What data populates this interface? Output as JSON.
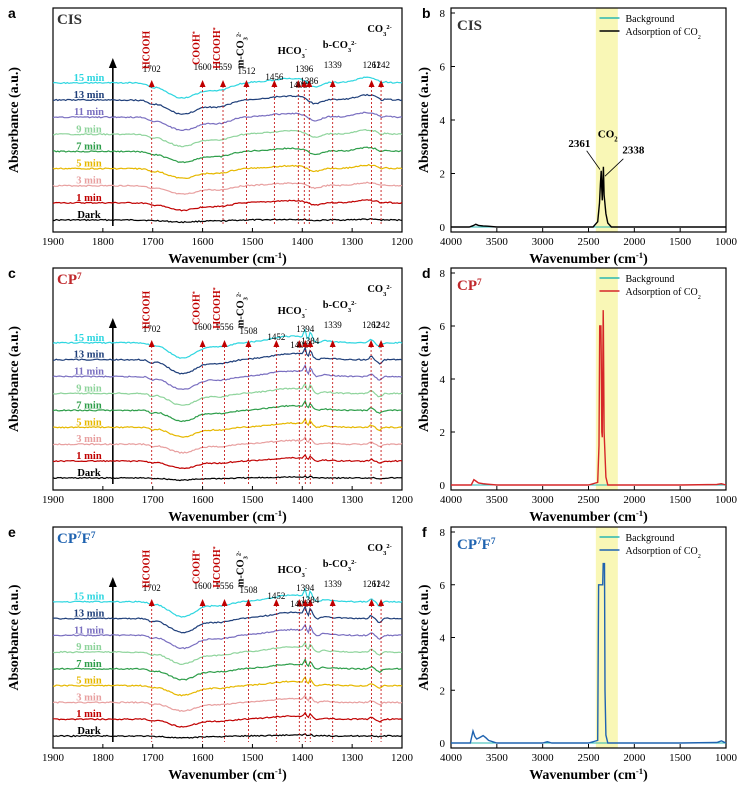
{
  "panels": {
    "a": {
      "letter": "a",
      "title": "CIS",
      "title_color": "#333333"
    },
    "b": {
      "letter": "b",
      "title": "CIS",
      "title_color": "#333333"
    },
    "c": {
      "letter": "c",
      "title": "CP",
      "title_sup": "7",
      "title_color": "#c0282c"
    },
    "d": {
      "letter": "d",
      "title": "CP",
      "title_sup": "7",
      "title_color": "#c0282c"
    },
    "e": {
      "letter": "e",
      "title": "CP",
      "title_sup": "7",
      "title_mid": "F",
      "title_sup2": "7",
      "title_color": "#1f63b0"
    },
    "f": {
      "letter": "f",
      "title": "CP",
      "title_sup": "7",
      "title_mid": "F",
      "title_sup2": "7",
      "title_color": "#1f63b0"
    }
  },
  "chart_data": [
    {
      "id": "a",
      "type": "line",
      "xlabel": "Wavenumber (cm-1)",
      "ylabel": "Absorbance (a.u.)",
      "xlim": [
        1900,
        1200
      ],
      "xticks": [
        1900,
        1800,
        1700,
        1600,
        1500,
        1400,
        1300,
        1200
      ],
      "series": [
        {
          "name": "Dark",
          "color": "#000000"
        },
        {
          "name": "1 min",
          "color": "#c00000"
        },
        {
          "name": "3 min",
          "color": "#e8a0a0"
        },
        {
          "name": "5 min",
          "color": "#e6b800"
        },
        {
          "name": "7 min",
          "color": "#2e9e4a"
        },
        {
          "name": "9 min",
          "color": "#8fd49c"
        },
        {
          "name": "11 min",
          "color": "#7a6fc0"
        },
        {
          "name": "13 min",
          "color": "#1f3f7a"
        },
        {
          "name": "15 min",
          "color": "#2ed6e0"
        }
      ],
      "peaks": [
        "1702",
        "1600",
        "1559",
        "1512",
        "1456",
        "1408",
        "1396",
        "1386",
        "1339",
        "1261",
        "1242"
      ],
      "peak_positions": [
        1702,
        1600,
        1559,
        1512,
        1456,
        1408,
        1396,
        1386,
        1339,
        1261,
        1242
      ],
      "species": [
        "HCOOH",
        "COOH*",
        "HCOOH*",
        "m-CO32-",
        "HCO3-",
        "b-CO32-",
        "CO32-"
      ]
    },
    {
      "id": "b",
      "type": "line",
      "xlabel": "Wavenumber (cm-1)",
      "ylabel": "Absorbance (a.u.)",
      "xlim": [
        4000,
        1000
      ],
      "ylim": [
        0,
        8
      ],
      "xticks": [
        4000,
        3500,
        3000,
        2500,
        2000,
        1500,
        1000
      ],
      "yticks": [
        0,
        2,
        4,
        6,
        8
      ],
      "legend": [
        "Background",
        "Adsorption of CO2"
      ],
      "legend_position": "top-right",
      "highlight_band": [
        2420,
        2180
      ],
      "annotations": [
        "2361",
        "CO2",
        "2338"
      ],
      "series": [
        {
          "name": "Background",
          "color": "#2ab7b0",
          "x": [
            4000,
            3000,
            2500,
            2000,
            1000
          ],
          "y": [
            0.0,
            0.0,
            0.0,
            0.0,
            0.0
          ]
        },
        {
          "name": "Adsorption of CO2",
          "color": "#000000",
          "x": [
            4000,
            3800,
            3760,
            3730,
            3700,
            3650,
            3600,
            3500,
            3000,
            2450,
            2400,
            2380,
            2370,
            2361,
            2355,
            2349,
            2345,
            2338,
            2330,
            2310,
            2290,
            2250,
            2000,
            1500,
            1000
          ],
          "y": [
            0,
            0,
            0.05,
            0.1,
            0.06,
            0.04,
            0.03,
            0,
            0,
            0,
            0.2,
            0.9,
            1.6,
            2.1,
            1.4,
            1.0,
            1.5,
            2.25,
            1.2,
            0.5,
            0.15,
            0,
            0,
            0,
            0
          ]
        }
      ]
    },
    {
      "id": "c",
      "type": "line",
      "xlabel": "Wavenumber (cm-1)",
      "ylabel": "Absorbance (a.u.)",
      "xlim": [
        1900,
        1200
      ],
      "xticks": [
        1900,
        1800,
        1700,
        1600,
        1500,
        1400,
        1300,
        1200
      ],
      "series": [
        {
          "name": "Dark",
          "color": "#000000"
        },
        {
          "name": "1 min",
          "color": "#c00000"
        },
        {
          "name": "3 min",
          "color": "#e8a0a0"
        },
        {
          "name": "5 min",
          "color": "#e6b800"
        },
        {
          "name": "7 min",
          "color": "#2e9e4a"
        },
        {
          "name": "9 min",
          "color": "#8fd49c"
        },
        {
          "name": "11 min",
          "color": "#7a6fc0"
        },
        {
          "name": "13 min",
          "color": "#1f3f7a"
        },
        {
          "name": "15 min",
          "color": "#2ed6e0"
        }
      ],
      "peaks": [
        "1702",
        "1600",
        "1556",
        "1508",
        "1452",
        "1406",
        "1394",
        "1384",
        "1339",
        "1262",
        "1242"
      ],
      "peak_positions": [
        1702,
        1600,
        1556,
        1508,
        1452,
        1406,
        1394,
        1384,
        1339,
        1262,
        1242
      ],
      "species": [
        "HCOOH",
        "COOH*",
        "HCOOH*",
        "m-CO32-",
        "HCO3-",
        "b-CO32-",
        "CO32-"
      ]
    },
    {
      "id": "d",
      "type": "line",
      "xlabel": "Wavenumber (cm-1)",
      "ylabel": "Absorbance (a.u.)",
      "xlim": [
        4000,
        1000
      ],
      "ylim": [
        0,
        8
      ],
      "xticks": [
        4000,
        3500,
        3000,
        2500,
        2000,
        1500,
        1000
      ],
      "yticks": [
        0,
        2,
        4,
        6,
        8
      ],
      "legend": [
        "Background",
        "Adsorption of CO2"
      ],
      "legend_position": "top-right",
      "highlight_band": [
        2420,
        2180
      ],
      "series": [
        {
          "name": "Background",
          "color": "#2ab7b0",
          "x": [
            4000,
            3000,
            2500,
            2000,
            1000
          ],
          "y": [
            0.0,
            0.0,
            0.0,
            0.0,
            0.0
          ]
        },
        {
          "name": "Adsorption of CO2",
          "color": "#d62728",
          "x": [
            4000,
            3780,
            3750,
            3730,
            3700,
            3650,
            3600,
            3500,
            3000,
            2500,
            2400,
            2385,
            2378,
            2372,
            2365,
            2361,
            2355,
            2349,
            2345,
            2340,
            2338,
            2330,
            2310,
            2290,
            2000,
            1500,
            1100,
            1050,
            1000
          ],
          "y": [
            0,
            0,
            0.2,
            0.15,
            0.08,
            0.05,
            0.03,
            0,
            0,
            0,
            0.1,
            1.5,
            6.0,
            6.0,
            6.0,
            5.0,
            2.0,
            1.8,
            4.0,
            6.6,
            6.0,
            2.0,
            0.3,
            0,
            0,
            0,
            0.02,
            0.05,
            0
          ]
        }
      ]
    },
    {
      "id": "e",
      "type": "line",
      "xlabel": "Wavenumber (cm-1)",
      "ylabel": "Absorbance (a.u.)",
      "xlim": [
        1900,
        1200
      ],
      "xticks": [
        1900,
        1800,
        1700,
        1600,
        1500,
        1400,
        1300,
        1200
      ],
      "series": [
        {
          "name": "Dark",
          "color": "#000000"
        },
        {
          "name": "1 min",
          "color": "#c00000"
        },
        {
          "name": "3 min",
          "color": "#e8a0a0"
        },
        {
          "name": "5 min",
          "color": "#e6b800"
        },
        {
          "name": "7 min",
          "color": "#2e9e4a"
        },
        {
          "name": "9 min",
          "color": "#8fd49c"
        },
        {
          "name": "11 min",
          "color": "#7a6fc0"
        },
        {
          "name": "13 min",
          "color": "#1f3f7a"
        },
        {
          "name": "15 min",
          "color": "#2ed6e0"
        }
      ],
      "peaks": [
        "1702",
        "1600",
        "1556",
        "1508",
        "1452",
        "1406",
        "1394",
        "1384",
        "1339",
        "1261",
        "1242"
      ],
      "peak_positions": [
        1702,
        1600,
        1556,
        1508,
        1452,
        1406,
        1394,
        1384,
        1339,
        1261,
        1242
      ],
      "species": [
        "HCOOH",
        "COOH*",
        "HCOOH*",
        "m-CO32-",
        "HCO3-",
        "b-CO32-",
        "CO32-"
      ]
    },
    {
      "id": "f",
      "type": "line",
      "xlabel": "Wavenumber (cm-1)",
      "ylabel": "Absorbance (a.u.)",
      "xlim": [
        4000,
        1000
      ],
      "ylim": [
        0,
        8
      ],
      "xticks": [
        4000,
        3500,
        3000,
        2500,
        2000,
        1500,
        1000
      ],
      "yticks": [
        0,
        2,
        4,
        6,
        8
      ],
      "legend": [
        "Background",
        "Adsorption of CO2"
      ],
      "legend_position": "top-right",
      "highlight_band": [
        2420,
        2180
      ],
      "series": [
        {
          "name": "Background",
          "color": "#2ab7b0",
          "x": [
            4000,
            3000,
            2500,
            2000,
            1000
          ],
          "y": [
            0.0,
            0.0,
            0.0,
            0.0,
            0.0
          ]
        },
        {
          "name": "Adsorption of CO2",
          "color": "#1f63b0",
          "x": [
            4000,
            3790,
            3760,
            3740,
            3720,
            3690,
            3650,
            3620,
            3590,
            3500,
            3000,
            2950,
            2900,
            2500,
            2400,
            2390,
            2385,
            2345,
            2340,
            2325,
            2320,
            2310,
            2290,
            2000,
            1500,
            1100,
            1050,
            1000
          ],
          "y": [
            0,
            0,
            0.45,
            0.25,
            0.15,
            0.2,
            0.28,
            0.2,
            0.1,
            0,
            0,
            0.05,
            0,
            0,
            0.1,
            6.0,
            6.0,
            6.0,
            6.8,
            6.8,
            2.0,
            0.3,
            0,
            0,
            0,
            0.02,
            0.08,
            0
          ]
        }
      ]
    }
  ]
}
